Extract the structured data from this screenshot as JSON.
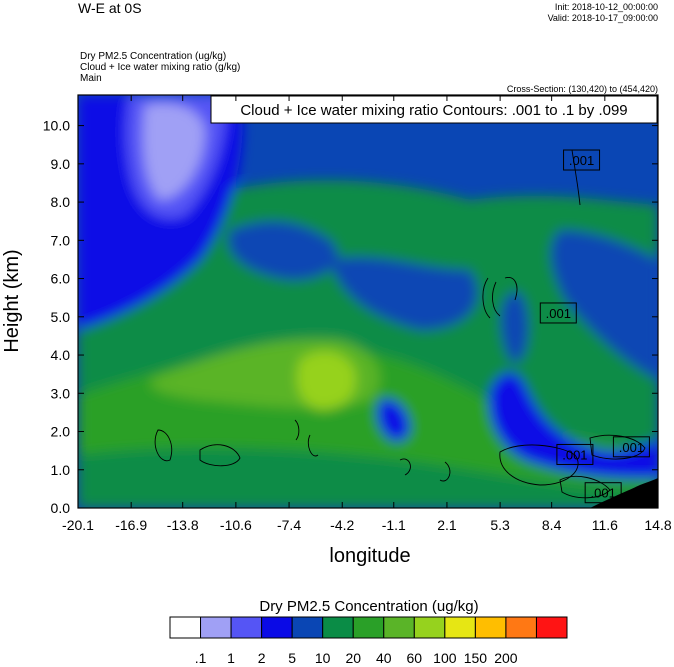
{
  "header": {
    "title": "W-E at 0S",
    "init": "Init: 2018-10-12_00:00:00",
    "valid": "Valid: 2018-10-17_09:00:00"
  },
  "fields": [
    "Dry PM2.5 Concentration   (ug/kg)",
    "Cloud + Ice water mixing ratio   (g/kg)",
    "Main"
  ],
  "cross_section": "Cross-Section: (130,420) to (454,420)",
  "chart_data": {
    "type": "heatmap",
    "title": "",
    "contour_label": "Cloud + Ice water mixing ratio Contours: .001 to .1 by .099",
    "xlabel": "longitude",
    "ylabel": "Height (km)",
    "xlim": [
      -20.1,
      14.8
    ],
    "ylim": [
      0.0,
      10.8
    ],
    "x_ticks": [
      "-20.1",
      "-16.9",
      "-13.8",
      "-10.6",
      "-7.4",
      "-4.2",
      "-1.1",
      "2.1",
      "5.3",
      "8.4",
      "11.6",
      "14.8"
    ],
    "y_ticks": [
      "0.0",
      "1.0",
      "2.0",
      "3.0",
      "4.0",
      "5.0",
      "6.0",
      "7.0",
      "8.0",
      "9.0",
      "10.0"
    ],
    "contour_labels": [
      {
        "text": ".001",
        "x": 10.2,
        "y": 9.1
      },
      {
        "text": ".001",
        "x": 8.8,
        "y": 5.1
      },
      {
        "text": ".001",
        "x": 9.8,
        "y": 1.4
      },
      {
        "text": ".001",
        "x": 13.2,
        "y": 1.6
      },
      {
        "text": ".001",
        "x": 11.5,
        "y": 0.4
      }
    ],
    "colorbar": {
      "title": "Dry PM2.5 Concentration  (ug/kg)",
      "labels": [
        ".1",
        "1",
        "2",
        "5",
        "10",
        "20",
        "40",
        "60",
        "100",
        "150",
        "200"
      ],
      "colors": [
        "#ffffff",
        "#a0a0f5",
        "#5555f5",
        "#0a0ae6",
        "#0a46b4",
        "#0a8c46",
        "#2aa028",
        "#5ab428",
        "#96d21e",
        "#e6e614",
        "#ffbe00",
        "#ff7814",
        "#ff1414"
      ]
    },
    "grid": false
  }
}
